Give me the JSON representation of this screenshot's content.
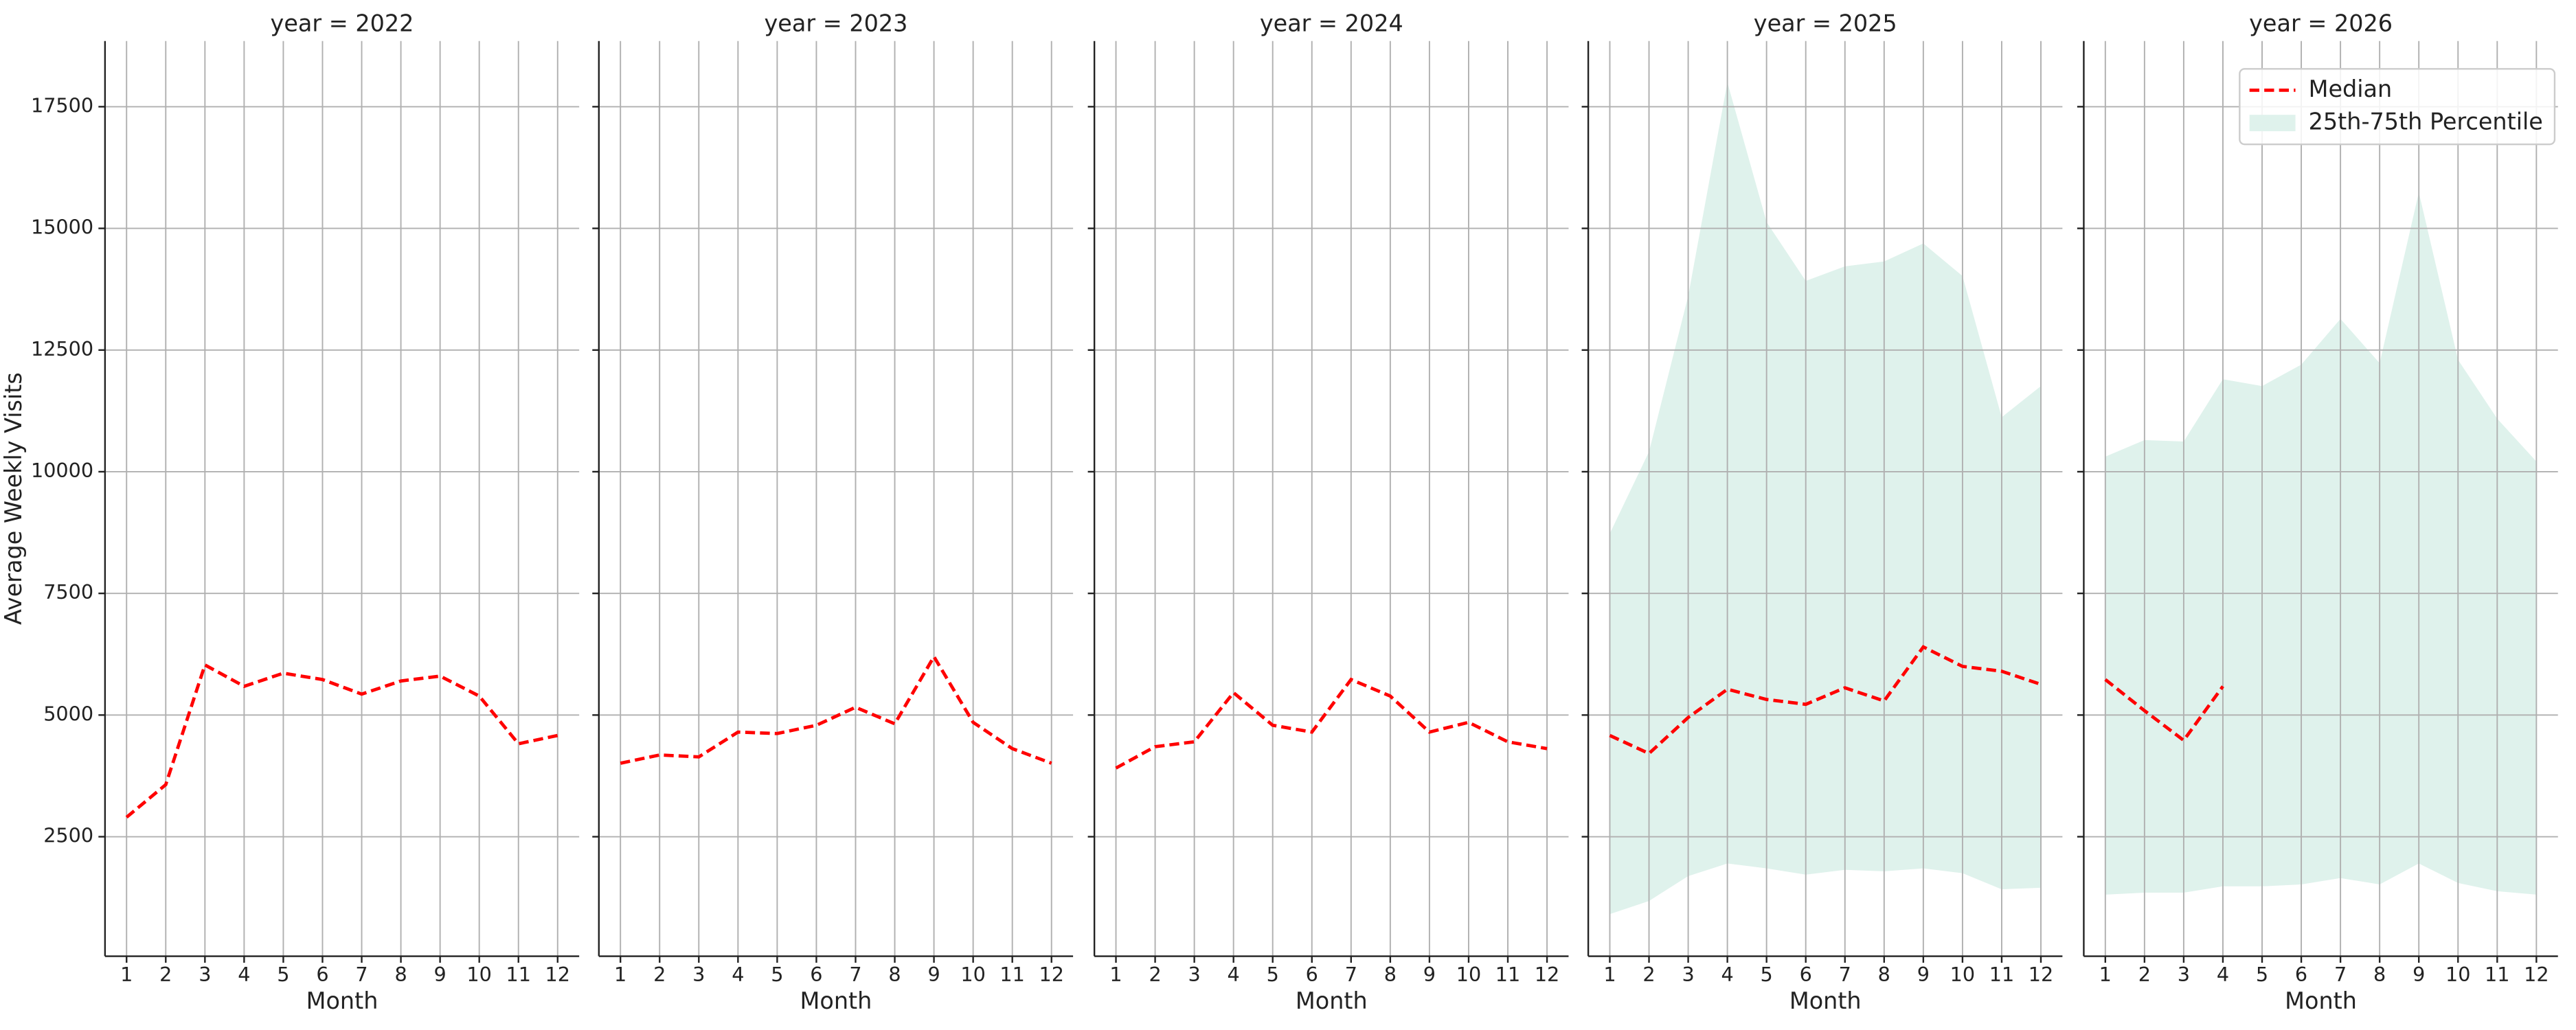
{
  "chart_data": [
    {
      "type": "line",
      "title": "year = 2022",
      "xlabel": "Month",
      "ylabel": "Average Weekly Visits",
      "x": [
        1,
        2,
        3,
        4,
        5,
        6,
        7,
        8,
        9,
        10,
        11,
        12
      ],
      "xticks": [
        1,
        2,
        3,
        4,
        5,
        6,
        7,
        8,
        9,
        10,
        11,
        12
      ],
      "xlim": [
        0.45,
        12.55
      ],
      "ylim": [
        45,
        18850
      ],
      "yticks": [
        2500,
        5000,
        7500,
        10000,
        12500,
        15000,
        17500
      ],
      "grid": true,
      "series": [
        {
          "color": "#ff0000",
          "values": [
            2900,
            3570,
            6030,
            5590,
            5860,
            5730,
            5430,
            5700,
            5800,
            5390,
            4410,
            4580
          ]
        }
      ]
    },
    {
      "type": "line",
      "title": "year = 2023",
      "xlabel": "Month",
      "x": [
        1,
        2,
        3,
        4,
        5,
        6,
        7,
        8,
        9,
        10,
        11,
        12
      ],
      "xticks": [
        1,
        2,
        3,
        4,
        5,
        6,
        7,
        8,
        9,
        10,
        11,
        12
      ],
      "xlim": [
        0.45,
        12.55
      ],
      "ylim": [
        45,
        18850
      ],
      "yticks": [
        2500,
        5000,
        7500,
        10000,
        12500,
        15000,
        17500
      ],
      "grid": true,
      "series": [
        {
          "color": "#ff0000",
          "values": [
            4010,
            4180,
            4140,
            4650,
            4620,
            4790,
            5160,
            4820,
            6200,
            4850,
            4310,
            4010
          ]
        }
      ]
    },
    {
      "type": "line",
      "title": "year = 2024",
      "xlabel": "Month",
      "x": [
        1,
        2,
        3,
        4,
        5,
        6,
        7,
        8,
        9,
        10,
        11,
        12
      ],
      "xticks": [
        1,
        2,
        3,
        4,
        5,
        6,
        7,
        8,
        9,
        10,
        11,
        12
      ],
      "xlim": [
        0.45,
        12.55
      ],
      "ylim": [
        45,
        18850
      ],
      "yticks": [
        2500,
        5000,
        7500,
        10000,
        12500,
        15000,
        17500
      ],
      "grid": true,
      "series": [
        {
          "color": "#ff0000",
          "values": [
            3910,
            4350,
            4450,
            5460,
            4790,
            4650,
            5730,
            5390,
            4650,
            4850,
            4450,
            4310
          ]
        }
      ]
    },
    {
      "type": "line",
      "title": "year = 2025",
      "xlabel": "Month",
      "x": [
        1,
        2,
        3,
        4,
        5,
        6,
        7,
        8,
        9,
        10,
        11,
        12
      ],
      "xticks": [
        1,
        2,
        3,
        4,
        5,
        6,
        7,
        8,
        9,
        10,
        11,
        12
      ],
      "xlim": [
        0.45,
        12.55
      ],
      "ylim": [
        45,
        18850
      ],
      "yticks": [
        2500,
        5000,
        7500,
        10000,
        12500,
        15000,
        17500
      ],
      "grid": true,
      "series": [
        {
          "color": "#ff0000",
          "values": [
            4580,
            4210,
            4950,
            5530,
            5320,
            5220,
            5560,
            5290,
            6400,
            6000,
            5900,
            5630
          ]
        },
        {
          "kind": "band",
          "color": "#dff2ec",
          "lower": [
            910,
            1180,
            1690,
            1950,
            1850,
            1720,
            1820,
            1790,
            1850,
            1750,
            1420,
            1450
          ],
          "upper": [
            8730,
            10410,
            13610,
            18000,
            15130,
            13920,
            14220,
            14320,
            14690,
            14020,
            11120,
            11760
          ]
        }
      ]
    },
    {
      "type": "line",
      "title": "year = 2026",
      "xlabel": "Month",
      "legend": "upper right",
      "x": [
        1,
        2,
        3,
        4,
        5,
        6,
        7,
        8,
        9,
        10,
        11,
        12
      ],
      "xticks": [
        1,
        2,
        3,
        4,
        5,
        6,
        7,
        8,
        9,
        10,
        11,
        12
      ],
      "xlim": [
        0.45,
        12.55
      ],
      "ylim": [
        45,
        18850
      ],
      "yticks": [
        2500,
        5000,
        7500,
        10000,
        12500,
        15000,
        17500
      ],
      "grid": true,
      "series": [
        {
          "name": "Median",
          "color": "#ff0000",
          "values": [
            5730,
            5090,
            4480,
            5590,
            null,
            null,
            null,
            null,
            null,
            null,
            null,
            null
          ]
        },
        {
          "name": "25th-75th Percentile",
          "kind": "band",
          "color": "#dff2ec",
          "lower": [
            1310,
            1350,
            1350,
            1480,
            1480,
            1520,
            1650,
            1520,
            1950,
            1550,
            1380,
            1310
          ],
          "upper": [
            10310,
            10650,
            10620,
            11900,
            11760,
            12200,
            13140,
            12230,
            15740,
            12300,
            11090,
            10210
          ]
        }
      ]
    }
  ]
}
